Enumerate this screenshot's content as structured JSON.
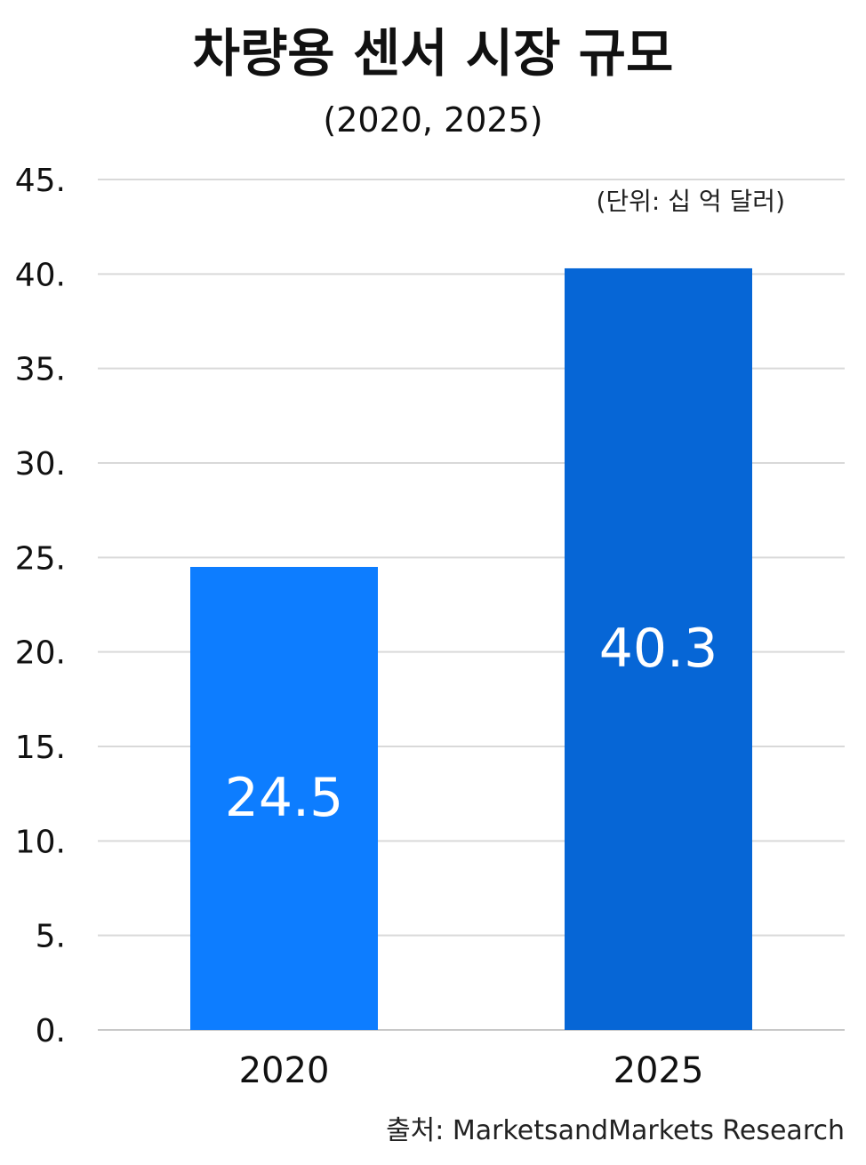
{
  "chart_data": {
    "type": "bar",
    "title": "차량용 센서 시장 규모",
    "subtitle": "(2020, 2025)",
    "unit_note": "(단위: 십 억 달러)",
    "source": "출처: MarketsandMarkets Research",
    "categories": [
      "2020",
      "2025"
    ],
    "values": [
      24.5,
      40.3
    ],
    "value_labels": [
      "24.5",
      "40.3"
    ],
    "bar_colors": [
      "#0d7dff",
      "#0666d6"
    ],
    "ylim": [
      0,
      45
    ],
    "yticks": [
      0,
      5,
      10,
      15,
      20,
      25,
      30,
      35,
      40,
      45
    ],
    "ytick_labels": [
      "0.",
      "5.",
      "10.",
      "15.",
      "20.",
      "25.",
      "30.",
      "35.",
      "40.",
      "45."
    ],
    "grid": true,
    "xlabel": "",
    "ylabel": ""
  }
}
